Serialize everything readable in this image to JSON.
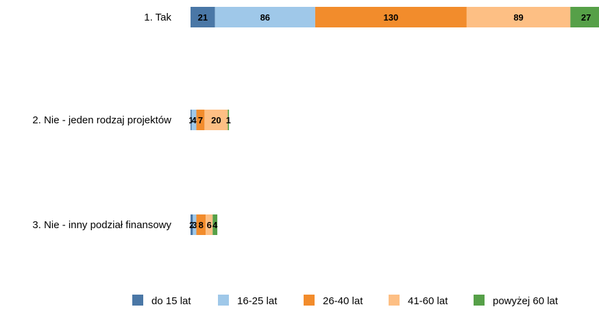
{
  "chart_data": {
    "type": "bar",
    "orientation": "horizontal",
    "stacked": true,
    "categories": [
      "1. Tak",
      "2. Nie - jeden rodzaj projektów",
      "3. Nie - inny podział finansowy"
    ],
    "series": [
      {
        "name": "do 15 lat",
        "values": [
          21,
          1,
          2
        ],
        "color": "#4a77a6"
      },
      {
        "name": "16-25 lat",
        "values": [
          86,
          4,
          3
        ],
        "color": "#9fc8e9"
      },
      {
        "name": "26-40 lat",
        "values": [
          130,
          7,
          8
        ],
        "color": "#f28c2c"
      },
      {
        "name": "41-60 lat",
        "values": [
          89,
          20,
          6
        ],
        "color": "#fdbf84"
      },
      {
        "name": "powyżej 60 lat",
        "values": [
          27,
          1,
          4
        ],
        "color": "#56a048"
      }
    ],
    "title": "",
    "xlabel": "",
    "ylabel": "",
    "grid": false,
    "legend_position": "bottom"
  }
}
